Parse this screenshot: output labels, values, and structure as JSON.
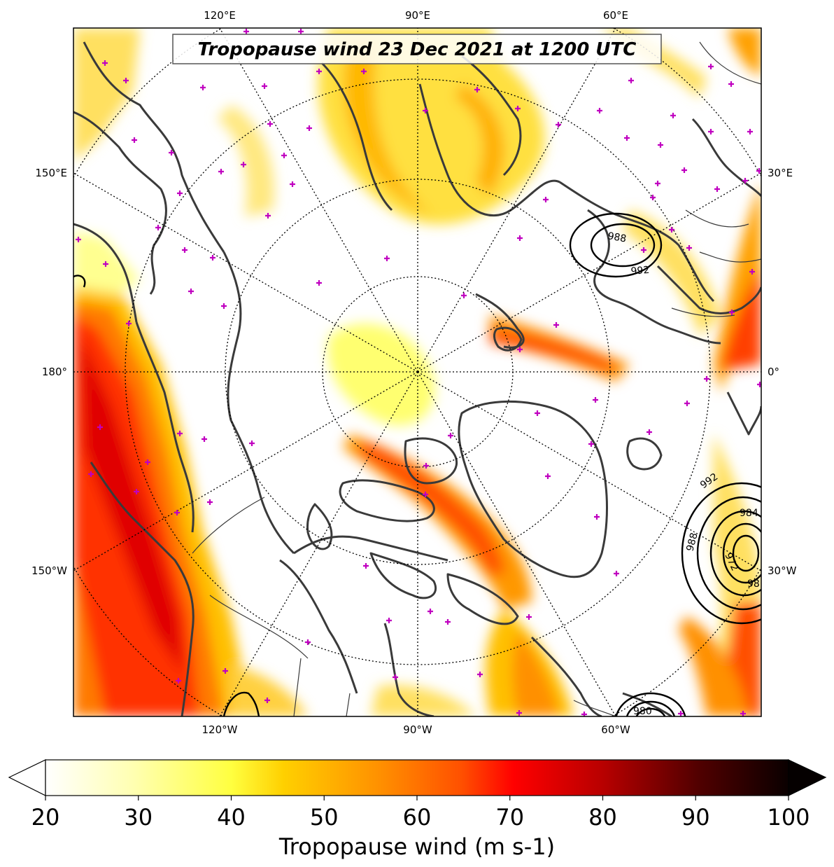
{
  "map": {
    "title": "Tropopause wind 23 Dec 2021 at 1200 UTC",
    "projection": "north-polar-stereographic",
    "top_lon_labels": [
      "120°E",
      "90°E",
      "60°E"
    ],
    "bottom_lon_labels": [
      "120°W",
      "90°W",
      "60°W"
    ],
    "left_lon_labels": [
      "150°E",
      "180°",
      "150°W"
    ],
    "right_lon_labels": [
      "30°E",
      "0°",
      "30°W"
    ],
    "contour_labels": [
      "988",
      "992",
      "992",
      "984",
      "988",
      "972",
      "98",
      "980"
    ],
    "colors": {
      "land_outline": "#3a3a3a",
      "graticule": "#000000",
      "station_marker": "#c000c0",
      "contour": "#000000"
    }
  },
  "colorbar": {
    "label": "Tropopause wind (m s-1)",
    "tick_labels": [
      "20",
      "30",
      "40",
      "50",
      "60",
      "70",
      "80",
      "90",
      "100"
    ],
    "min": 20,
    "max": 100,
    "extend": "both",
    "colormap": "hot_r"
  }
}
